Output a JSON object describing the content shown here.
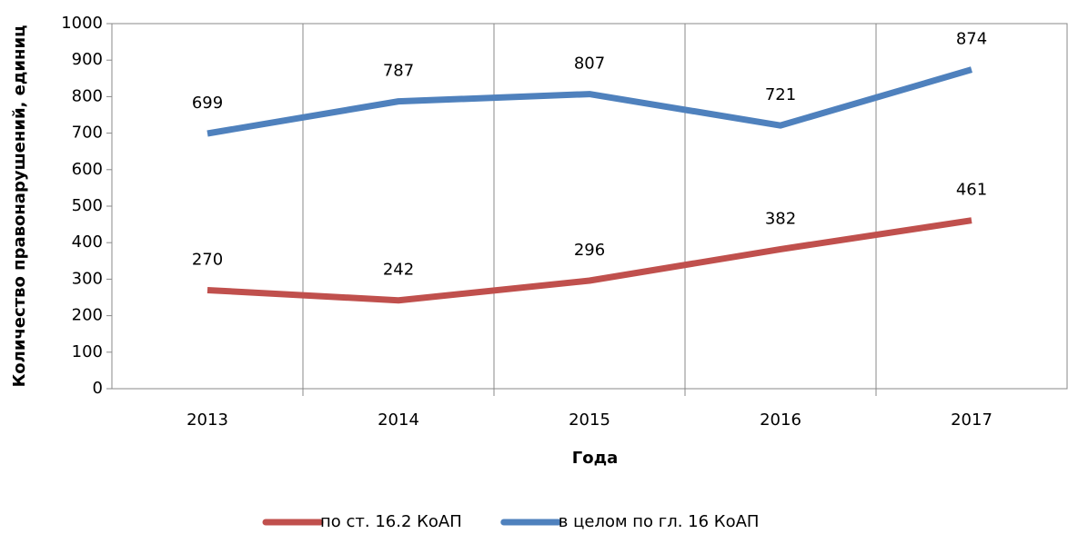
{
  "chart_data": {
    "type": "line",
    "x_label": "Года",
    "y_label": "Количество правонарушений, единиц",
    "categories": [
      "2013",
      "2014",
      "2015",
      "2016",
      "2017"
    ],
    "series": [
      {
        "name": "по ст. 16.2 КоАП",
        "color": "#c0504d",
        "values": [
          270,
          242,
          296,
          382,
          461
        ]
      },
      {
        "name": "в целом по гл. 16 КоАП",
        "color": "#4f81bd",
        "values": [
          699,
          787,
          807,
          721,
          874
        ]
      }
    ],
    "ylim": [
      0,
      1000
    ],
    "yticks": [
      0,
      100,
      200,
      300,
      400,
      500,
      600,
      700,
      800,
      900,
      1000
    ],
    "legend": "bottom"
  }
}
